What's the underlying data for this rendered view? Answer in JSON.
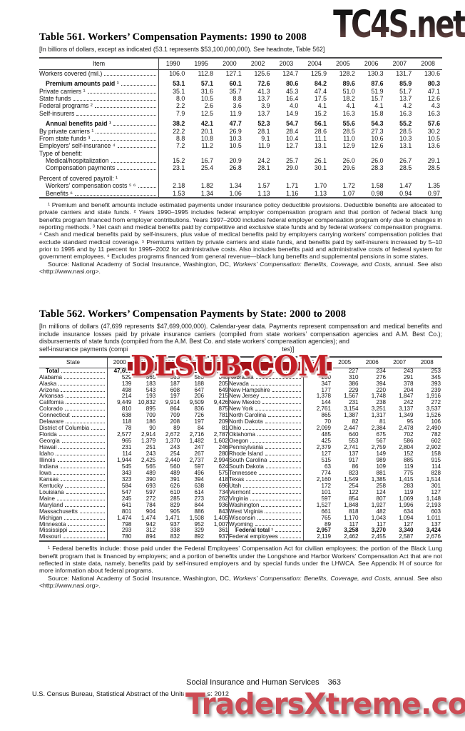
{
  "watermarks": {
    "top": "TC4S.net",
    "middle": "DLSUB.COM",
    "bottom": "TradersXtreme.com"
  },
  "table561": {
    "title": "Table 561. Workers’ Compensation Payments: 1990 to 2008",
    "headnote": "[In billions of dollars, except as indicated (53.1 represents $53,100,000,000). See headnote, Table 562]",
    "item_header": "Item",
    "years": [
      "1990",
      "1995",
      "2000",
      "2002",
      "2003",
      "2004",
      "2005",
      "2006",
      "2007",
      "2008"
    ],
    "rows": [
      {
        "label": "Workers covered (mil.)",
        "cls": "dots",
        "values": [
          "106.0",
          "112.8",
          "127.1",
          "125.6",
          "124.7",
          "125.9",
          "128.2",
          "130.3",
          "131.7",
          "130.6"
        ]
      },
      {
        "label": "",
        "cls": "blank",
        "values": []
      },
      {
        "label": "Premium amounts paid ¹",
        "cls": "dots bold ind1",
        "values": [
          "53.1",
          "57.1",
          "60.1",
          "72.6",
          "80.6",
          "84.2",
          "89.6",
          "87.6",
          "85.9",
          "80.3"
        ]
      },
      {
        "label": "Private carriers ¹",
        "cls": "dots",
        "values": [
          "35.1",
          "31.6",
          "35.7",
          "41.3",
          "45.3",
          "47.4",
          "51.0",
          "51.9",
          "51.7",
          "47.1"
        ]
      },
      {
        "label": "State funds",
        "cls": "dots",
        "values": [
          "8.0",
          "10.5",
          "8.8",
          "13.7",
          "16.4",
          "17.5",
          "18.2",
          "15.7",
          "13.7",
          "12.6"
        ]
      },
      {
        "label": "Federal programs ²",
        "cls": "dots",
        "values": [
          "2.2",
          "2.6",
          "3.6",
          "3.9",
          "4.0",
          "4.1",
          "4.1",
          "4.1",
          "4.2",
          "4.3"
        ]
      },
      {
        "label": "Self-insurers",
        "cls": "dots",
        "values": [
          "7.9",
          "12.5",
          "11.9",
          "13.7",
          "14.9",
          "15.2",
          "16.3",
          "15.8",
          "16.3",
          "16.3"
        ]
      },
      {
        "label": "",
        "cls": "blank",
        "values": []
      },
      {
        "label": "Annual benefits paid ¹",
        "cls": "dots bold ind1",
        "values": [
          "38.2",
          "42.1",
          "47.7",
          "52.3",
          "54.7",
          "56.1",
          "55.6",
          "54.3",
          "55.2",
          "57.6"
        ]
      },
      {
        "label": "By private carriers ¹",
        "cls": "dots",
        "values": [
          "22.2",
          "20.1",
          "26.9",
          "28.1",
          "28.4",
          "28.6",
          "28.5",
          "27.3",
          "28.5",
          "30.2"
        ]
      },
      {
        "label": "From state funds ³",
        "cls": "dots",
        "values": [
          "8.8",
          "10.8",
          "10.3",
          "9.1",
          "10.4",
          "11.1",
          "11.0",
          "10.6",
          "10.3",
          "10.5"
        ]
      },
      {
        "label": "Employers’ self-insurance ⁴",
        "cls": "dots",
        "values": [
          "7.2",
          "11.2",
          "10.5",
          "11.9",
          "12.7",
          "13.1",
          "12.9",
          "12.6",
          "13.1",
          "13.6"
        ]
      },
      {
        "label": "Type of benefit:",
        "cls": "",
        "values": []
      },
      {
        "label": "Medical/hospitalization",
        "cls": "dots ind1",
        "values": [
          "15.2",
          "16.7",
          "20.9",
          "24.2",
          "25.7",
          "26.1",
          "26.0",
          "26.0",
          "26.7",
          "29.1"
        ]
      },
      {
        "label": "Compensation payments",
        "cls": "dots ind1",
        "values": [
          "23.1",
          "25.4",
          "26.8",
          "28.1",
          "29.0",
          "30.1",
          "29.6",
          "28.3",
          "28.5",
          "28.5"
        ]
      },
      {
        "label": "",
        "cls": "blank",
        "values": []
      },
      {
        "label": "Percent of covered payroll: ¹",
        "cls": "",
        "values": []
      },
      {
        "label": "Workers’ compensation costs ⁵ ⁶",
        "cls": "dots ind1",
        "values": [
          "2.18",
          "1.82",
          "1.34",
          "1.57",
          "1.71",
          "1.70",
          "1.72",
          "1.58",
          "1.47",
          "1.35"
        ]
      },
      {
        "label": "Benefits ⁶",
        "cls": "dots ind1",
        "values": [
          "1.53",
          "1.34",
          "1.06",
          "1.13",
          "1.16",
          "1.13",
          "1.07",
          "0.98",
          "0.94",
          "0.97"
        ]
      }
    ],
    "footnote": "¹ Premium and benefit amounts include estimated payments under insurance policy deductible provisions. Deductible benefits are allocated to private carriers and state funds. ² Years 1990–1995 includes federal employer compensation program and that portion of federal black lung benefits program financed from employer contributions. Years 1997–2000 includes federal employer compensation program only due to changes in reporting methods. ³ Net cash and medical benefits paid by competitive and exclusive state funds and by federal workers’ compensation programs.  ⁴ Cash and medical benefits paid by self-insurers, plus value of medical benefits paid by employers carrying workers’ compensation policies that exclude standard medical coverage. ⁵ Premiums written by private carriers and state funds, and benefits paid by self-insurers increased by 5–10 prior to 1995 and by 11 percent for 1995–2002 for administrative costs. Also includes benefits paid and administrative costs of federal system for government employees. ⁶ Excludes programs financed from general revenue—black lung benefits and supplemental pensions in some states.",
    "source": {
      "pre": "Source: National Academy of Social Insurance, Washington, DC, ",
      "italic": "Workers’ Compensation: Benefits, Coverage, and Costs,",
      "post": " annual. See also <http://www.nasi.org>."
    }
  },
  "table562": {
    "title": "Table 562. Workers’ Compensation Payments by State: 2000 to 2008",
    "headnote_lines": "[In millions of dollars (47,699 represents $47,699,000,000). Calendar-year data. Payments represent compensation and medical benefits and include insurance losses paid by private insurance carriers (compiled from state workers’ compensation agencies and A.M. Best Co.); disbursements of state funds (compiled from the A.M. Best Co. and state workers’ compensation agencies); and",
    "headnote_frag_left": "self-insurance payments (compi",
    "headnote_frag_right": "tes)]",
    "state_header": "State",
    "years": [
      "2000",
      "2005",
      "2006",
      "2007",
      "2008"
    ],
    "left_rows": [
      {
        "label": "Total",
        "cls": "dots bold ind1",
        "values": [
          "47,699",
          "55,630",
          "54,274",
          "55,217",
          "57,633"
        ]
      },
      {
        "label": "Alabama",
        "cls": "dots",
        "values": [
          "529",
          "565",
          "563",
          "585",
          "648"
        ]
      },
      {
        "label": "Alaska",
        "cls": "dots",
        "values": [
          "139",
          "183",
          "187",
          "188",
          "205"
        ]
      },
      {
        "label": "Arizona",
        "cls": "dots",
        "values": [
          "498",
          "543",
          "608",
          "647",
          "649"
        ]
      },
      {
        "label": "Arkansas",
        "cls": "dots",
        "values": [
          "214",
          "193",
          "197",
          "206",
          "215"
        ]
      },
      {
        "label": "California",
        "cls": "dots",
        "values": [
          "9,449",
          "10,832",
          "9,914",
          "9,509",
          "9,426"
        ]
      },
      {
        "label": "Colorado",
        "cls": "dots",
        "values": [
          "810",
          "895",
          "864",
          "836",
          "875"
        ]
      },
      {
        "label": "Connecticut",
        "cls": "dots",
        "values": [
          "638",
          "709",
          "709",
          "726",
          "781"
        ]
      },
      {
        "label": "Delaware",
        "cls": "dots",
        "values": [
          "118",
          "186",
          "208",
          "197",
          "209"
        ]
      },
      {
        "label": "District of Columbia",
        "cls": "dots",
        "values": [
          "78",
          "90",
          "89",
          "84",
          "81"
        ]
      },
      {
        "label": "Florida",
        "cls": "dots",
        "values": [
          "2,577",
          "2,914",
          "2,672",
          "2,716",
          "2,787"
        ]
      },
      {
        "label": "Georgia",
        "cls": "dots",
        "values": [
          "965",
          "1,379",
          "1,370",
          "1,482",
          "1,602"
        ]
      },
      {
        "label": "Hawaii",
        "cls": "dots",
        "values": [
          "231",
          "251",
          "243",
          "247",
          "246"
        ]
      },
      {
        "label": "Idaho",
        "cls": "dots",
        "values": [
          "114",
          "243",
          "254",
          "267",
          "280"
        ]
      },
      {
        "label": "Illinois",
        "cls": "dots",
        "values": [
          "1,944",
          "2,425",
          "2,440",
          "2,737",
          "2,994"
        ]
      },
      {
        "label": "Indiana",
        "cls": "dots",
        "values": [
          "545",
          "565",
          "560",
          "597",
          "624"
        ]
      },
      {
        "label": "Iowa",
        "cls": "dots",
        "values": [
          "343",
          "489",
          "489",
          "496",
          "575"
        ]
      },
      {
        "label": "Kansas",
        "cls": "dots",
        "values": [
          "323",
          "390",
          "391",
          "394",
          "418"
        ]
      },
      {
        "label": "Kentucky",
        "cls": "dots",
        "values": [
          "584",
          "693",
          "626",
          "638",
          "696"
        ]
      },
      {
        "label": "Louisiana",
        "cls": "dots",
        "values": [
          "547",
          "597",
          "610",
          "614",
          "734"
        ]
      },
      {
        "label": "Maine",
        "cls": "dots",
        "values": [
          "245",
          "272",
          "285",
          "273",
          "262"
        ]
      },
      {
        "label": "Maryland",
        "cls": "dots",
        "values": [
          "641",
          "784",
          "829",
          "844",
          "936"
        ]
      },
      {
        "label": "Massachusetts",
        "cls": "dots",
        "values": [
          "801",
          "904",
          "905",
          "886",
          "843"
        ]
      },
      {
        "label": "Michigan",
        "cls": "dots",
        "values": [
          "1,474",
          "1,474",
          "1,471",
          "1,508",
          "1,405"
        ]
      },
      {
        "label": "Minnesota",
        "cls": "dots",
        "values": [
          "798",
          "942",
          "937",
          "952",
          "1,007"
        ]
      },
      {
        "label": "Mississippi",
        "cls": "dots",
        "values": [
          "293",
          "312",
          "338",
          "329",
          "361"
        ]
      },
      {
        "label": "Missouri",
        "cls": "dots",
        "values": [
          "780",
          "894",
          "832",
          "892",
          "937"
        ]
      }
    ],
    "right_rows": [
      {
        "label": "Montana",
        "cls": "dots",
        "values": [
          "155",
          "227",
          "234",
          "243",
          "253"
        ]
      },
      {
        "label": "Nebraska",
        "cls": "dots",
        "values": [
          "230",
          "310",
          "276",
          "291",
          "345"
        ]
      },
      {
        "label": "Nevada",
        "cls": "dots",
        "values": [
          "347",
          "386",
          "394",
          "378",
          "393"
        ]
      },
      {
        "label": "New Hampshire",
        "cls": "dots",
        "values": [
          "177",
          "229",
          "220",
          "204",
          "239"
        ]
      },
      {
        "label": "New Jersey",
        "cls": "dots",
        "values": [
          "1,378",
          "1,567",
          "1,748",
          "1,847",
          "1,916"
        ]
      },
      {
        "label": "New Mexico",
        "cls": "dots",
        "values": [
          "144",
          "231",
          "238",
          "242",
          "272"
        ]
      },
      {
        "label": "New York",
        "cls": "dots",
        "values": [
          "2,761",
          "3,154",
          "3,251",
          "3,137",
          "3,537"
        ]
      },
      {
        "label": "North Carolina",
        "cls": "dots",
        "values": [
          "865",
          "1,387",
          "1,317",
          "1,349",
          "1,526"
        ]
      },
      {
        "label": "North Dakota",
        "cls": "dots",
        "values": [
          "70",
          "82",
          "81",
          "95",
          "106"
        ]
      },
      {
        "label": "Ohio",
        "cls": "dots",
        "values": [
          "2,099",
          "2,447",
          "2,384",
          "2,478",
          "2,490"
        ]
      },
      {
        "label": "Oklahoma",
        "cls": "dots",
        "values": [
          "485",
          "640",
          "675",
          "702",
          "782"
        ]
      },
      {
        "label": "Oregon",
        "cls": "dots",
        "values": [
          "425",
          "553",
          "567",
          "586",
          "602"
        ]
      },
      {
        "label": "Pennsylvania",
        "cls": "dots",
        "values": [
          "2,379",
          "2,741",
          "2,759",
          "2,804",
          "2,902"
        ]
      },
      {
        "label": "Rhode Island",
        "cls": "dots",
        "values": [
          "127",
          "137",
          "149",
          "152",
          "158"
        ]
      },
      {
        "label": "South Carolina",
        "cls": "dots",
        "values": [
          "515",
          "917",
          "989",
          "885",
          "915"
        ]
      },
      {
        "label": "South Dakota",
        "cls": "dots",
        "values": [
          "63",
          "86",
          "109",
          "119",
          "114"
        ]
      },
      {
        "label": "Tennessee",
        "cls": "dots",
        "values": [
          "774",
          "823",
          "881",
          "775",
          "828"
        ]
      },
      {
        "label": "Texas",
        "cls": "dots",
        "values": [
          "2,160",
          "1,549",
          "1,385",
          "1,415",
          "1,514"
        ]
      },
      {
        "label": "Utah",
        "cls": "dots",
        "values": [
          "172",
          "254",
          "258",
          "283",
          "301"
        ]
      },
      {
        "label": "Vermont",
        "cls": "dots",
        "values": [
          "101",
          "122",
          "124",
          "119",
          "127"
        ]
      },
      {
        "label": "Virginia",
        "cls": "dots",
        "values": [
          "597",
          "854",
          "807",
          "1,069",
          "1,148"
        ]
      },
      {
        "label": "Washington",
        "cls": "dots",
        "values": [
          "1,527",
          "1,848",
          "1,927",
          "1,996",
          "2,193"
        ]
      },
      {
        "label": "West Virginia",
        "cls": "dots",
        "values": [
          "661",
          "818",
          "482",
          "634",
          "603"
        ]
      },
      {
        "label": "Wisconsin",
        "cls": "dots",
        "values": [
          "765",
          "1,170",
          "1,043",
          "1,094",
          "1,011"
        ]
      },
      {
        "label": "Wyoming",
        "cls": "dots",
        "values": [
          "89",
          "117",
          "117",
          "127",
          "137"
        ]
      },
      {
        "label": "Federal total ¹",
        "cls": "dots bold ind1",
        "values": [
          "2,957",
          "3,258",
          "3,270",
          "3,340",
          "3,424"
        ]
      },
      {
        "label": "Federal employees",
        "cls": "dots",
        "values": [
          "2,119",
          "2,462",
          "2,455",
          "2,587",
          "2,676"
        ]
      }
    ],
    "footnote": "¹ Federal benefits include: those paid under the Federal Employees’ Compensation Act for civilian employees; the portion of the Black Lung benefit program that is financed by employers; and a portion of benefits under the Longshore and Harbor Workers’ Compensation Act that are not reflected in state data, namely, benefits paid by self-insured employers and by special funds under the LHWCA. See Appendix H of source for more information about federal programs.",
    "source": {
      "pre": "Source: National Academy of Social Insurance, Washington, DC, ",
      "italic": "Workers’ Compensation: Benefits, Coverage, and Costs,",
      "post": " annual. See also <http://www.nasi.org>."
    }
  },
  "footer": {
    "section": "Social Insurance and Human Services",
    "page_number": "363",
    "credit": "U.S. Census Bureau, Statistical Abstract of the United States: 2012"
  }
}
